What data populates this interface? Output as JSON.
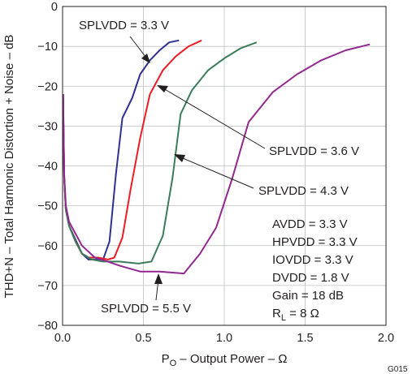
{
  "chart_data": {
    "type": "line",
    "xlabel_main": "P",
    "xlabel_sub": "O",
    "xlabel_rest": " – Output Power – Ω",
    "ylabel": "THD+N – Total Harmonic Distortion + Noise – dB",
    "figure_id": "G015",
    "xlim": [
      0,
      2.0
    ],
    "ylim": [
      -80,
      0
    ],
    "xticks": [
      "0.0",
      "0.5",
      "1.0",
      "1.5",
      "2.0"
    ],
    "yticks": [
      "0",
      "−10",
      "−20",
      "−30",
      "−40",
      "−50",
      "−60",
      "−70",
      "−80"
    ],
    "grid": true,
    "series": [
      {
        "name": "SPLVDD = 3.3 V",
        "color": "#2e3192",
        "points": [
          [
            0.003,
            -22
          ],
          [
            0.01,
            -43
          ],
          [
            0.02,
            -51
          ],
          [
            0.04,
            -55
          ],
          [
            0.08,
            -58.5
          ],
          [
            0.12,
            -62
          ],
          [
            0.16,
            -63.5
          ],
          [
            0.2,
            -63.5
          ],
          [
            0.25,
            -63.5
          ],
          [
            0.29,
            -59
          ],
          [
            0.33,
            -42
          ],
          [
            0.37,
            -28
          ],
          [
            0.43,
            -23
          ],
          [
            0.48,
            -17
          ],
          [
            0.54,
            -13.5
          ],
          [
            0.6,
            -11
          ],
          [
            0.66,
            -9
          ],
          [
            0.72,
            -8.5
          ]
        ]
      },
      {
        "name": "SPLVDD = 3.6 V",
        "color": "#ed1c24",
        "points": [
          [
            0.003,
            -22
          ],
          [
            0.01,
            -43
          ],
          [
            0.02,
            -51
          ],
          [
            0.04,
            -55
          ],
          [
            0.08,
            -59
          ],
          [
            0.12,
            -62
          ],
          [
            0.16,
            -63
          ],
          [
            0.22,
            -63
          ],
          [
            0.28,
            -63.5
          ],
          [
            0.32,
            -63
          ],
          [
            0.37,
            -58
          ],
          [
            0.42,
            -46
          ],
          [
            0.48,
            -33
          ],
          [
            0.54,
            -22
          ],
          [
            0.62,
            -16
          ],
          [
            0.7,
            -12.5
          ],
          [
            0.78,
            -10
          ],
          [
            0.86,
            -8.5
          ]
        ]
      },
      {
        "name": "SPLVDD = 4.3 V",
        "color": "#3b7d5a",
        "points": [
          [
            0.003,
            -22
          ],
          [
            0.01,
            -43
          ],
          [
            0.02,
            -51
          ],
          [
            0.04,
            -55
          ],
          [
            0.08,
            -59
          ],
          [
            0.12,
            -62
          ],
          [
            0.18,
            -63.5
          ],
          [
            0.25,
            -64
          ],
          [
            0.35,
            -64
          ],
          [
            0.47,
            -64.5
          ],
          [
            0.55,
            -64
          ],
          [
            0.62,
            -57.5
          ],
          [
            0.68,
            -43
          ],
          [
            0.73,
            -27
          ],
          [
            0.8,
            -21
          ],
          [
            0.9,
            -16
          ],
          [
            1.0,
            -13
          ],
          [
            1.1,
            -10.5
          ],
          [
            1.2,
            -9
          ]
        ]
      },
      {
        "name": "SPLVDD = 5.5 V",
        "color": "#92278f",
        "points": [
          [
            0.003,
            -22
          ],
          [
            0.01,
            -42
          ],
          [
            0.02,
            -50
          ],
          [
            0.04,
            -54
          ],
          [
            0.08,
            -57
          ],
          [
            0.12,
            -60
          ],
          [
            0.2,
            -63
          ],
          [
            0.28,
            -64
          ],
          [
            0.35,
            -65
          ],
          [
            0.48,
            -66.5
          ],
          [
            0.6,
            -66.5
          ],
          [
            0.75,
            -67
          ],
          [
            0.85,
            -62
          ],
          [
            0.95,
            -55.5
          ],
          [
            1.05,
            -43
          ],
          [
            1.15,
            -29
          ],
          [
            1.3,
            -21.5
          ],
          [
            1.45,
            -17
          ],
          [
            1.6,
            -13.5
          ],
          [
            1.75,
            -11
          ],
          [
            1.9,
            -9.5
          ]
        ]
      }
    ],
    "annotations": [
      {
        "text": "SPLVDD = 3.3 V",
        "series": 0
      },
      {
        "text": "SPLVDD = 3.6 V",
        "series": 1
      },
      {
        "text": "SPLVDD = 4.3 V",
        "series": 2
      },
      {
        "text": "SPLVDD = 5.5 V",
        "series": 3
      }
    ],
    "conditions": [
      "AVDD = 3.3 V",
      "HPVDD = 3.3 V",
      "IOVDD = 3.3 V",
      "DVDD = 1.8 V",
      "Gain = 18 dB"
    ],
    "condition_rl": {
      "main": "R",
      "sub": "L",
      "rest": " = 8 Ω"
    }
  }
}
